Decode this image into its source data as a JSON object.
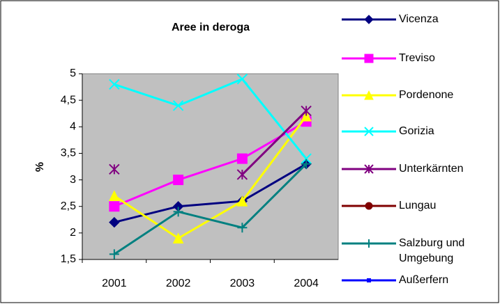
{
  "chart_data": {
    "type": "line",
    "title": "Aree in deroga",
    "y_label": "%",
    "categories": [
      "2001",
      "2002",
      "2003",
      "2004"
    ],
    "ylim": [
      1.5,
      5
    ],
    "yticks": [
      {
        "value": 1.5,
        "label": "1,5"
      },
      2,
      {
        "value": 2.5,
        "label": "2,5"
      },
      3,
      {
        "value": 3.5,
        "label": "3,5"
      },
      4,
      {
        "value": 4.5,
        "label": "4,5"
      },
      5
    ],
    "grid": false,
    "legend": "right",
    "plot_background": "#c0c0c0",
    "series": [
      {
        "name": "Vicenza",
        "color": "#000080",
        "marker": "diamond",
        "values": [
          2.2,
          2.5,
          2.6,
          3.3
        ]
      },
      {
        "name": "Treviso",
        "color": "#ff00ff",
        "marker": "square",
        "values": [
          2.5,
          3.0,
          3.4,
          4.1
        ]
      },
      {
        "name": "Pordenone",
        "color": "#ffff00",
        "marker": "triangle",
        "values": [
          2.7,
          1.9,
          2.6,
          4.2
        ]
      },
      {
        "name": "Gorizia",
        "color": "#00ffff",
        "marker": "x",
        "values": [
          4.8,
          4.4,
          4.9,
          3.4
        ]
      },
      {
        "name": "Unterkärnten",
        "color": "#800080",
        "marker": "star",
        "values": [
          3.2,
          null,
          3.1,
          4.3
        ]
      },
      {
        "name": "Lungau",
        "color": "#800000",
        "marker": "circle",
        "values": [
          null,
          null,
          null,
          null
        ]
      },
      {
        "name": "Salzburg und Umgebung",
        "color": "#008080",
        "marker": "plus",
        "values": [
          1.6,
          2.4,
          2.1,
          3.3
        ]
      },
      {
        "name": "Außerfern",
        "color": "#0000ff",
        "marker": "small-square",
        "values": [
          null,
          null,
          null,
          null
        ]
      }
    ]
  }
}
